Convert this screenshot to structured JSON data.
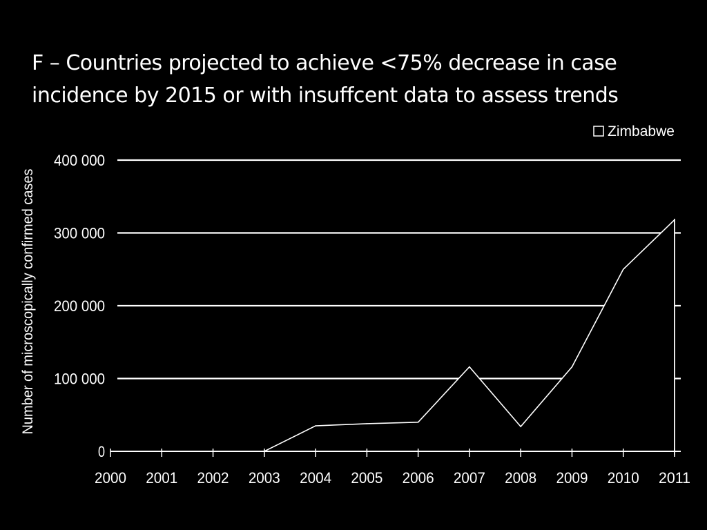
{
  "chart_data": {
    "type": "area",
    "title_lines": [
      "F – Countries projected to achieve <75% decrease in case",
      "incidence by 2015 or with insuffcent data to assess trends"
    ],
    "ylabel": "Number of microscopically confirmed cases",
    "xlabel": "",
    "x": [
      "2000",
      "2001",
      "2002",
      "2003",
      "2004",
      "2005",
      "2006",
      "2007",
      "2008",
      "2009",
      "2010",
      "2011"
    ],
    "series": [
      {
        "name": "Zimbabwe",
        "values": [
          0,
          0,
          0,
          0,
          35000,
          38000,
          40000,
          116000,
          34000,
          116000,
          250000,
          318000
        ]
      }
    ],
    "ylim": [
      0,
      400000
    ],
    "y_ticks": [
      0,
      100000,
      200000,
      300000,
      400000
    ],
    "y_tick_labels": [
      "0",
      "100 000",
      "200 000",
      "300 000",
      "400 000"
    ],
    "grid": true,
    "legend_position": "top-right",
    "colors": {
      "background": "#000000",
      "foreground": "#ffffff",
      "series_fill": "#000000"
    }
  }
}
